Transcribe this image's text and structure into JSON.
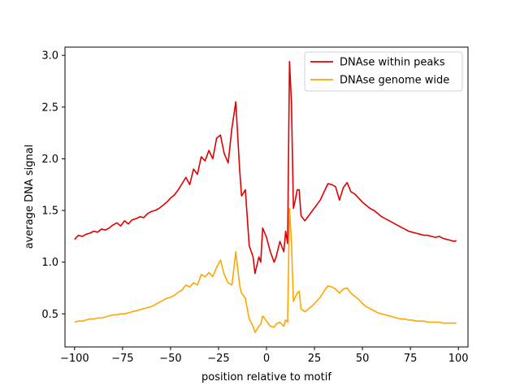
{
  "chart_data": {
    "type": "line",
    "xlabel": "position relative to motif",
    "ylabel": "average DNA signal",
    "xlim": [
      -105,
      105
    ],
    "ylim": [
      0.18,
      3.08
    ],
    "xticks": [
      -100,
      -75,
      -50,
      -25,
      0,
      25,
      50,
      75,
      100
    ],
    "yticks": [
      0.5,
      1.0,
      1.5,
      2.0,
      2.5,
      3.0
    ],
    "xtick_labels": [
      "−100",
      "−75",
      "−50",
      "−25",
      "0",
      "25",
      "50",
      "75",
      "100"
    ],
    "ytick_labels": [
      "0.5",
      "1.0",
      "1.5",
      "2.0",
      "2.5",
      "3.0"
    ],
    "grid": false,
    "legend_position": "top-right",
    "series": [
      {
        "name": "DNAse within peaks",
        "color": "#e00000",
        "points": [
          [
            -100,
            1.22
          ],
          [
            -98,
            1.26
          ],
          [
            -96,
            1.25
          ],
          [
            -94,
            1.27
          ],
          [
            -92,
            1.28
          ],
          [
            -90,
            1.3
          ],
          [
            -88,
            1.29
          ],
          [
            -86,
            1.32
          ],
          [
            -84,
            1.31
          ],
          [
            -82,
            1.33
          ],
          [
            -80,
            1.36
          ],
          [
            -78,
            1.38
          ],
          [
            -76,
            1.35
          ],
          [
            -74,
            1.4
          ],
          [
            -72,
            1.37
          ],
          [
            -70,
            1.41
          ],
          [
            -68,
            1.42
          ],
          [
            -66,
            1.44
          ],
          [
            -64,
            1.43
          ],
          [
            -62,
            1.47
          ],
          [
            -60,
            1.49
          ],
          [
            -58,
            1.5
          ],
          [
            -56,
            1.52
          ],
          [
            -54,
            1.55
          ],
          [
            -52,
            1.58
          ],
          [
            -50,
            1.62
          ],
          [
            -48,
            1.65
          ],
          [
            -46,
            1.7
          ],
          [
            -44,
            1.76
          ],
          [
            -42,
            1.82
          ],
          [
            -40,
            1.75
          ],
          [
            -38,
            1.9
          ],
          [
            -36,
            1.85
          ],
          [
            -34,
            2.02
          ],
          [
            -32,
            1.98
          ],
          [
            -30,
            2.08
          ],
          [
            -28,
            2.0
          ],
          [
            -26,
            2.2
          ],
          [
            -24,
            2.23
          ],
          [
            -22,
            2.05
          ],
          [
            -20,
            1.96
          ],
          [
            -18,
            2.3
          ],
          [
            -16,
            2.55
          ],
          [
            -14,
            1.9
          ],
          [
            -13,
            1.64
          ],
          [
            -11,
            1.7
          ],
          [
            -9,
            1.16
          ],
          [
            -7,
            1.05
          ],
          [
            -6,
            0.89
          ],
          [
            -4,
            1.05
          ],
          [
            -3,
            1.0
          ],
          [
            -2,
            1.33
          ],
          [
            0,
            1.24
          ],
          [
            2,
            1.1
          ],
          [
            4,
            1.0
          ],
          [
            5,
            1.05
          ],
          [
            7,
            1.2
          ],
          [
            9,
            1.1
          ],
          [
            10,
            1.3
          ],
          [
            11,
            1.18
          ],
          [
            12,
            2.94
          ],
          [
            13,
            2.55
          ],
          [
            14,
            1.52
          ],
          [
            15,
            1.6
          ],
          [
            16,
            1.7
          ],
          [
            17,
            1.7
          ],
          [
            18,
            1.45
          ],
          [
            20,
            1.4
          ],
          [
            22,
            1.45
          ],
          [
            24,
            1.5
          ],
          [
            26,
            1.55
          ],
          [
            28,
            1.6
          ],
          [
            30,
            1.68
          ],
          [
            32,
            1.76
          ],
          [
            34,
            1.75
          ],
          [
            36,
            1.73
          ],
          [
            38,
            1.6
          ],
          [
            40,
            1.72
          ],
          [
            42,
            1.77
          ],
          [
            44,
            1.68
          ],
          [
            46,
            1.66
          ],
          [
            48,
            1.62
          ],
          [
            50,
            1.58
          ],
          [
            52,
            1.55
          ],
          [
            54,
            1.52
          ],
          [
            56,
            1.5
          ],
          [
            58,
            1.47
          ],
          [
            60,
            1.44
          ],
          [
            62,
            1.42
          ],
          [
            64,
            1.4
          ],
          [
            66,
            1.38
          ],
          [
            68,
            1.36
          ],
          [
            70,
            1.34
          ],
          [
            72,
            1.32
          ],
          [
            74,
            1.3
          ],
          [
            76,
            1.29
          ],
          [
            78,
            1.28
          ],
          [
            80,
            1.27
          ],
          [
            82,
            1.26
          ],
          [
            84,
            1.26
          ],
          [
            86,
            1.25
          ],
          [
            88,
            1.24
          ],
          [
            90,
            1.25
          ],
          [
            92,
            1.23
          ],
          [
            94,
            1.22
          ],
          [
            96,
            1.21
          ],
          [
            98,
            1.2
          ],
          [
            99,
            1.21
          ]
        ]
      },
      {
        "name": "DNAse genome wide",
        "color": "#ffa500",
        "points": [
          [
            -100,
            0.42
          ],
          [
            -98,
            0.43
          ],
          [
            -96,
            0.43
          ],
          [
            -94,
            0.44
          ],
          [
            -92,
            0.45
          ],
          [
            -90,
            0.45
          ],
          [
            -88,
            0.46
          ],
          [
            -86,
            0.46
          ],
          [
            -84,
            0.47
          ],
          [
            -82,
            0.48
          ],
          [
            -80,
            0.49
          ],
          [
            -78,
            0.49
          ],
          [
            -76,
            0.5
          ],
          [
            -74,
            0.5
          ],
          [
            -72,
            0.51
          ],
          [
            -70,
            0.52
          ],
          [
            -68,
            0.53
          ],
          [
            -66,
            0.54
          ],
          [
            -64,
            0.55
          ],
          [
            -62,
            0.56
          ],
          [
            -60,
            0.57
          ],
          [
            -58,
            0.59
          ],
          [
            -56,
            0.61
          ],
          [
            -54,
            0.63
          ],
          [
            -52,
            0.65
          ],
          [
            -50,
            0.66
          ],
          [
            -48,
            0.68
          ],
          [
            -46,
            0.71
          ],
          [
            -44,
            0.73
          ],
          [
            -42,
            0.78
          ],
          [
            -40,
            0.76
          ],
          [
            -38,
            0.8
          ],
          [
            -36,
            0.78
          ],
          [
            -34,
            0.88
          ],
          [
            -32,
            0.86
          ],
          [
            -30,
            0.9
          ],
          [
            -28,
            0.86
          ],
          [
            -26,
            0.95
          ],
          [
            -24,
            1.02
          ],
          [
            -22,
            0.88
          ],
          [
            -20,
            0.8
          ],
          [
            -18,
            0.78
          ],
          [
            -16,
            1.1
          ],
          [
            -14,
            0.78
          ],
          [
            -13,
            0.7
          ],
          [
            -11,
            0.65
          ],
          [
            -9,
            0.45
          ],
          [
            -7,
            0.38
          ],
          [
            -6,
            0.32
          ],
          [
            -4,
            0.38
          ],
          [
            -3,
            0.4
          ],
          [
            -2,
            0.48
          ],
          [
            0,
            0.43
          ],
          [
            2,
            0.38
          ],
          [
            4,
            0.37
          ],
          [
            5,
            0.4
          ],
          [
            7,
            0.42
          ],
          [
            9,
            0.38
          ],
          [
            10,
            0.44
          ],
          [
            11,
            0.42
          ],
          [
            12,
            1.52
          ],
          [
            13,
            1.2
          ],
          [
            14,
            0.62
          ],
          [
            15,
            0.66
          ],
          [
            16,
            0.7
          ],
          [
            17,
            0.72
          ],
          [
            18,
            0.55
          ],
          [
            20,
            0.52
          ],
          [
            22,
            0.55
          ],
          [
            24,
            0.58
          ],
          [
            26,
            0.62
          ],
          [
            28,
            0.66
          ],
          [
            30,
            0.72
          ],
          [
            32,
            0.77
          ],
          [
            34,
            0.76
          ],
          [
            36,
            0.74
          ],
          [
            38,
            0.7
          ],
          [
            40,
            0.74
          ],
          [
            42,
            0.75
          ],
          [
            44,
            0.7
          ],
          [
            46,
            0.67
          ],
          [
            48,
            0.64
          ],
          [
            50,
            0.6
          ],
          [
            52,
            0.57
          ],
          [
            54,
            0.55
          ],
          [
            56,
            0.53
          ],
          [
            58,
            0.51
          ],
          [
            60,
            0.5
          ],
          [
            62,
            0.49
          ],
          [
            64,
            0.48
          ],
          [
            66,
            0.47
          ],
          [
            68,
            0.46
          ],
          [
            70,
            0.45
          ],
          [
            72,
            0.45
          ],
          [
            74,
            0.44
          ],
          [
            76,
            0.44
          ],
          [
            78,
            0.43
          ],
          [
            80,
            0.43
          ],
          [
            82,
            0.43
          ],
          [
            84,
            0.42
          ],
          [
            86,
            0.42
          ],
          [
            88,
            0.42
          ],
          [
            90,
            0.42
          ],
          [
            92,
            0.41
          ],
          [
            94,
            0.41
          ],
          [
            96,
            0.41
          ],
          [
            98,
            0.41
          ],
          [
            99,
            0.41
          ]
        ]
      }
    ]
  }
}
